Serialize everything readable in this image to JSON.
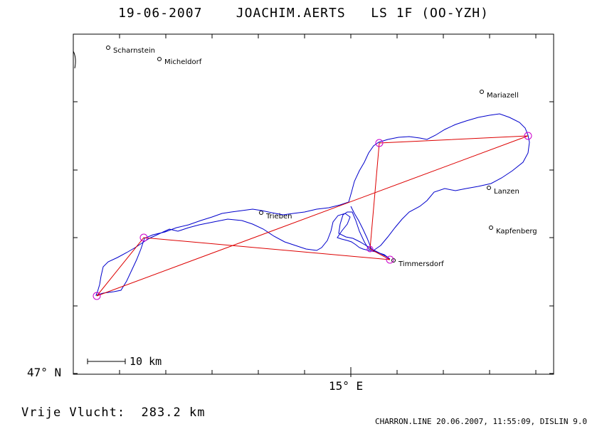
{
  "header": {
    "date": "19-06-2007",
    "pilot": "JOACHIM.AERTS",
    "glider": "LS 1F (OO-YZH)"
  },
  "axes": {
    "lat_label": "47° N",
    "lon_label": "15° E"
  },
  "scale": {
    "label": "10 km"
  },
  "result": {
    "label": "Vrije Vlucht:",
    "value": "283.2 km"
  },
  "footer": {
    "text": "CHARRON.LINE 20.06.2007, 11:55:09, DISLIN 9.0"
  },
  "towns": [
    {
      "name": "Scharnstein"
    },
    {
      "name": "Micheldorf"
    },
    {
      "name": "Mariazell"
    },
    {
      "name": "Lanzen"
    },
    {
      "name": "Kapfenberg"
    },
    {
      "name": "Trieben"
    },
    {
      "name": "Timmersdorf"
    }
  ],
  "colors": {
    "track": "#0000cc",
    "task": "#dd0000",
    "turnpoint": "#cc00cc",
    "frame": "#000000"
  }
}
